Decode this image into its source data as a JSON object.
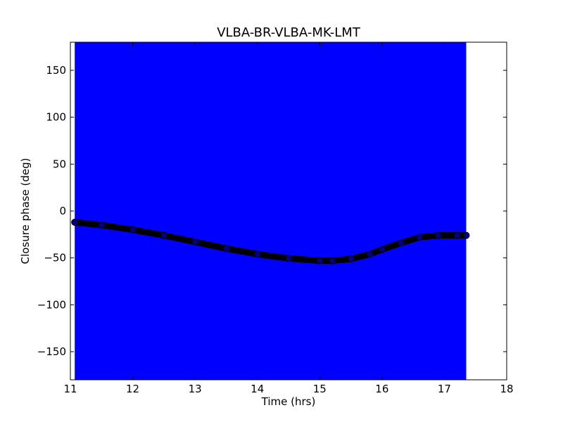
{
  "chart_data": {
    "type": "scatter",
    "title": "VLBA-BR-VLBA-MK-LMT",
    "xlabel": "Time (hrs)",
    "ylabel": "Closure phase (deg)",
    "xlim": [
      11,
      18
    ],
    "ylim": [
      -180,
      180
    ],
    "x_ticks": [
      11,
      12,
      13,
      14,
      15,
      16,
      17,
      18
    ],
    "y_ticks": [
      150,
      100,
      50,
      0,
      -50,
      -100,
      -150
    ],
    "x_tick_labels": [
      "11",
      "12",
      "13",
      "14",
      "15",
      "16",
      "17",
      "18"
    ],
    "y_tick_labels": [
      "150",
      "100",
      "50",
      "0",
      "−50",
      "−100",
      "−150"
    ],
    "grid": false,
    "error_band": {
      "x_range": [
        11.07,
        17.35
      ],
      "y_range": [
        -180,
        180
      ],
      "color": "#0000ff"
    },
    "series": [
      {
        "marker_color": "#000080",
        "edge_color": "#000000",
        "x": [
          11.07,
          11.5,
          12.0,
          12.5,
          13.0,
          13.5,
          14.0,
          14.5,
          15.0,
          15.2,
          15.5,
          15.8,
          16.0,
          16.3,
          16.6,
          16.9,
          17.2,
          17.35
        ],
        "y": [
          -12,
          -15,
          -20,
          -26,
          -33,
          -40,
          -46,
          -50.5,
          -53,
          -53,
          -51,
          -46,
          -41,
          -34,
          -28,
          -26,
          -26,
          -26
        ]
      }
    ]
  }
}
